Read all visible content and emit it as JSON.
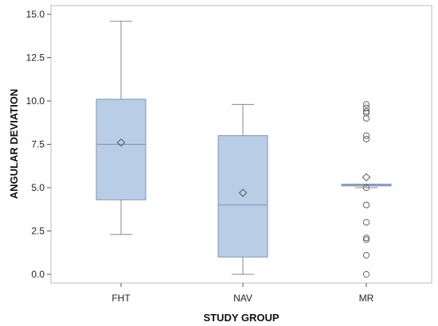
{
  "chart_data": {
    "type": "box",
    "xlabel": "STUDY GROUP",
    "ylabel": "ANGULAR DEVIATION",
    "ylim": [
      -0.6,
      15.5
    ],
    "yticks": [
      "0.0",
      "2.5",
      "5.0",
      "7.5",
      "10.0",
      "12.5",
      "15.0"
    ],
    "grid": false,
    "box_fill": "#b9cde6",
    "box_stroke": "#7f95b3",
    "categories": [
      "FHT",
      "NAV",
      "MR"
    ],
    "series": [
      {
        "category": "FHT",
        "whisker_low": 2.3,
        "q1": 4.3,
        "median": 7.5,
        "q3": 10.1,
        "whisker_high": 14.6,
        "mean": 7.6,
        "outliers": []
      },
      {
        "category": "NAV",
        "whisker_low": 0.0,
        "q1": 1.0,
        "median": 4.0,
        "q3": 8.0,
        "whisker_high": 9.8,
        "mean": 4.7,
        "outliers": []
      },
      {
        "category": "MR",
        "whisker_low": 5.0,
        "q1": 5.1,
        "median": 5.15,
        "q3": 5.2,
        "whisker_high": 5.2,
        "mean": 5.6,
        "outliers": [
          9.8,
          9.6,
          9.4,
          9.3,
          9.0,
          8.0,
          7.8,
          5.0,
          4.0,
          3.0,
          2.1,
          2.0,
          1.1,
          0.0
        ]
      }
    ]
  }
}
